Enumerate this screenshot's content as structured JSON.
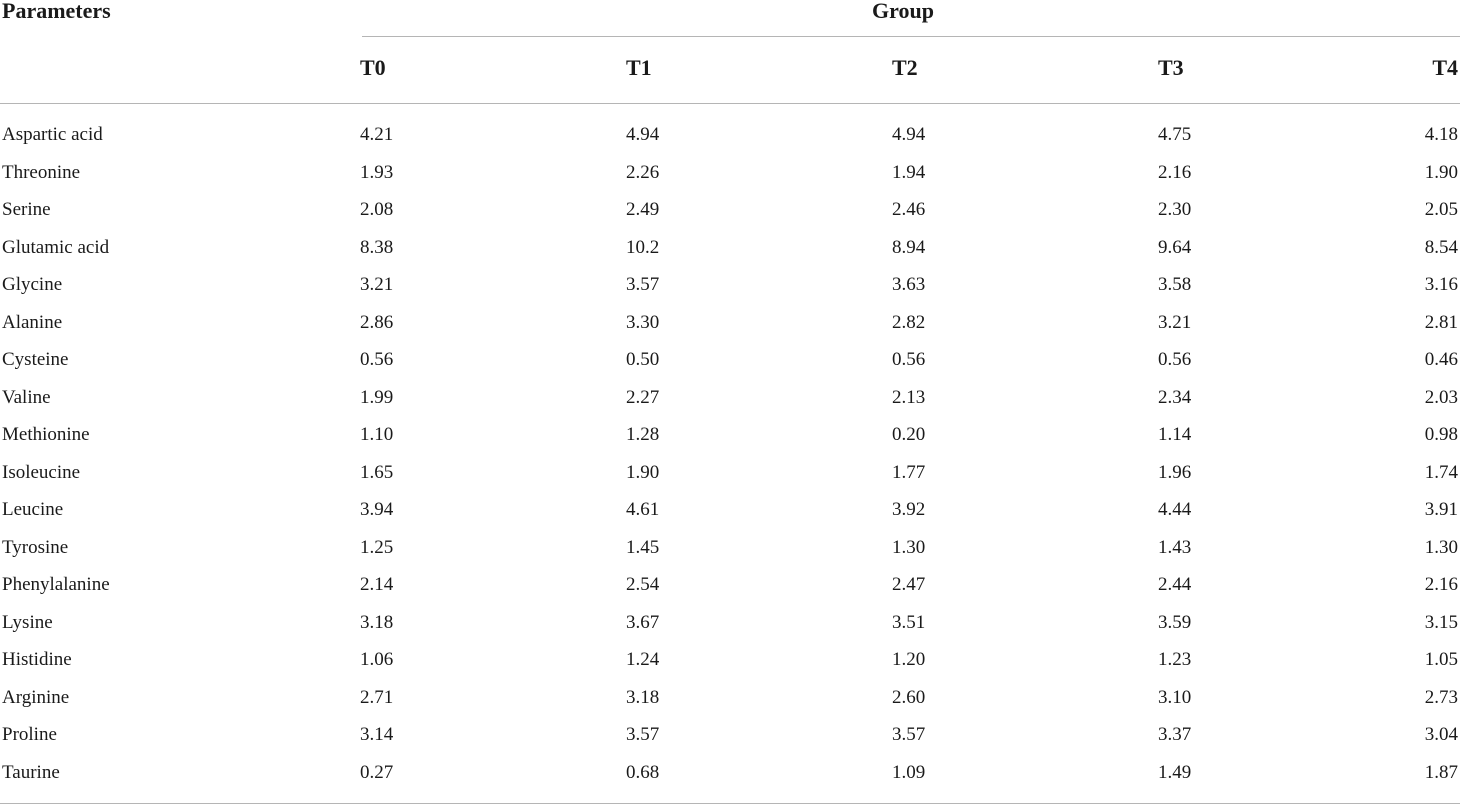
{
  "table": {
    "param_header": "Parameters",
    "group_header": "Group",
    "columns": [
      "T0",
      "T1",
      "T2",
      "T3",
      "T4"
    ],
    "rows": [
      {
        "name": "Aspartic acid",
        "values": [
          "4.21",
          "4.94",
          "4.94",
          "4.75",
          "4.18"
        ]
      },
      {
        "name": "Threonine",
        "values": [
          "1.93",
          "2.26",
          "1.94",
          "2.16",
          "1.90"
        ]
      },
      {
        "name": "Serine",
        "values": [
          "2.08",
          "2.49",
          "2.46",
          "2.30",
          "2.05"
        ]
      },
      {
        "name": "Glutamic acid",
        "values": [
          "8.38",
          "10.2",
          "8.94",
          "9.64",
          "8.54"
        ]
      },
      {
        "name": "Glycine",
        "values": [
          "3.21",
          "3.57",
          "3.63",
          "3.58",
          "3.16"
        ]
      },
      {
        "name": "Alanine",
        "values": [
          "2.86",
          "3.30",
          "2.82",
          "3.21",
          "2.81"
        ]
      },
      {
        "name": "Cysteine",
        "values": [
          "0.56",
          "0.50",
          "0.56",
          "0.56",
          "0.46"
        ]
      },
      {
        "name": "Valine",
        "values": [
          "1.99",
          "2.27",
          "2.13",
          "2.34",
          "2.03"
        ]
      },
      {
        "name": "Methionine",
        "values": [
          "1.10",
          "1.28",
          "0.20",
          "1.14",
          "0.98"
        ]
      },
      {
        "name": "Isoleucine",
        "values": [
          "1.65",
          "1.90",
          "1.77",
          "1.96",
          "1.74"
        ]
      },
      {
        "name": "Leucine",
        "values": [
          "3.94",
          "4.61",
          "3.92",
          "4.44",
          "3.91"
        ]
      },
      {
        "name": "Tyrosine",
        "values": [
          "1.25",
          "1.45",
          "1.30",
          "1.43",
          "1.30"
        ]
      },
      {
        "name": "Phenylalanine",
        "values": [
          "2.14",
          "2.54",
          "2.47",
          "2.44",
          "2.16"
        ]
      },
      {
        "name": "Lysine",
        "values": [
          "3.18",
          "3.67",
          "3.51",
          "3.59",
          "3.15"
        ]
      },
      {
        "name": "Histidine",
        "values": [
          "1.06",
          "1.24",
          "1.20",
          "1.23",
          "1.05"
        ]
      },
      {
        "name": "Arginine",
        "values": [
          "2.71",
          "3.18",
          "2.60",
          "3.10",
          "2.73"
        ]
      },
      {
        "name": "Proline",
        "values": [
          "3.14",
          "3.57",
          "3.57",
          "3.37",
          "3.04"
        ]
      },
      {
        "name": "Taurine",
        "values": [
          "0.27",
          "0.68",
          "1.09",
          "1.49",
          "1.87"
        ]
      }
    ]
  }
}
